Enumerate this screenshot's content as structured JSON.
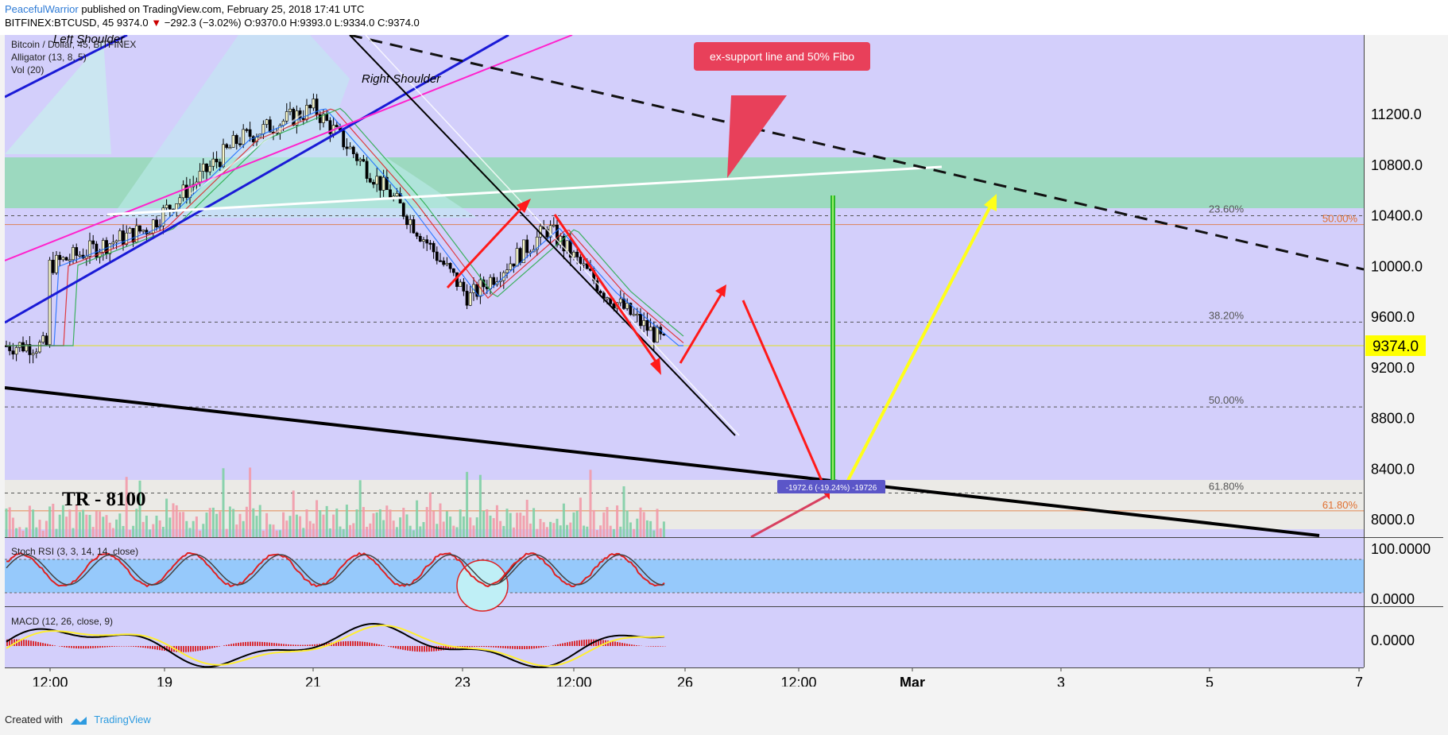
{
  "header": {
    "author": "PeacefulWarrior",
    "published_text": "published on TradingView.com, February 25, 2018 17:41 UTC",
    "symbol": "BITFINEX:BTCUSD, 45",
    "last": "9374.0",
    "change_arrow": "▼",
    "change": "−292.3 (−3.02%)",
    "ohlc": {
      "O": "O:9370.0",
      "H": "H:9393.0",
      "L": "L:9334.0",
      "C": "C:9374.0"
    }
  },
  "legend": {
    "title": "Bitcoin / Dollar, 45, BITFINEX",
    "alligator": "Alligator (13, 8, 5)",
    "vol": "Vol (20)"
  },
  "annotations": {
    "left_shoulder": "Left Shoulder",
    "right_shoulder": "Right Shoulder",
    "callout": "ex-support line and 50% Fibo",
    "tr": "TR - 8100",
    "measure": "-1972.6 (-19.24%) -19726"
  },
  "fibo": [
    {
      "label": "23.60%",
      "price": 10400
    },
    {
      "label": "38.20%",
      "price": 9560
    },
    {
      "label": "50.00%",
      "price": 8890
    },
    {
      "label": "61.80%",
      "price": 8210
    }
  ],
  "fibo_right": [
    {
      "label": "50.00%",
      "price": 10330
    },
    {
      "label": "61.80%",
      "price": 8070
    }
  ],
  "price_axis": {
    "ticks": [
      "11200.0",
      "10800.0",
      "10400.0",
      "10000.0",
      "9600.0",
      "9200.0",
      "8800.0",
      "8400.0",
      "8000.0"
    ],
    "tick_values": [
      11200,
      10800,
      10400,
      10000,
      9600,
      9200,
      8800,
      8400,
      8000
    ],
    "current": "9374.0",
    "current_value": 9374
  },
  "stoch": {
    "label": "Stoch RSI (3, 3, 14, 14, close)",
    "ticks": [
      "100.0000",
      "0.0000"
    ]
  },
  "macd": {
    "label": "MACD (12, 26, close, 9)",
    "ticks": [
      "0.0000"
    ]
  },
  "time_axis": [
    "12:00",
    "19",
    "21",
    "23",
    "12:00",
    "26",
    "12:00",
    "Mar",
    "3",
    "5",
    "7"
  ],
  "footer": {
    "created": "Created with",
    "brand": "TradingView"
  },
  "colors": {
    "panel_bg": "#d3cffb",
    "green_zone": "#92dbb4",
    "up": "#26a69a",
    "down": "#ef5350",
    "price_tag": "#ffff00"
  },
  "chart_data": {
    "type": "candlestick",
    "title": "Bitcoin / Dollar, 45, BITFINEX",
    "ylim": [
      7850,
      11450
    ],
    "series": [
      {
        "name": "BTCUSD",
        "x": [
          "Feb 18 12:00",
          "Feb 19",
          "Feb 20",
          "Feb 21",
          "Feb 22",
          "Feb 23",
          "Feb 24",
          "Feb 24 12:00",
          "Feb 25"
        ],
        "values": [
          10000,
          10300,
          11000,
          11250,
          10500,
          9750,
          10300,
          9800,
          9374
        ]
      }
    ],
    "last_price": 9374.0
  }
}
